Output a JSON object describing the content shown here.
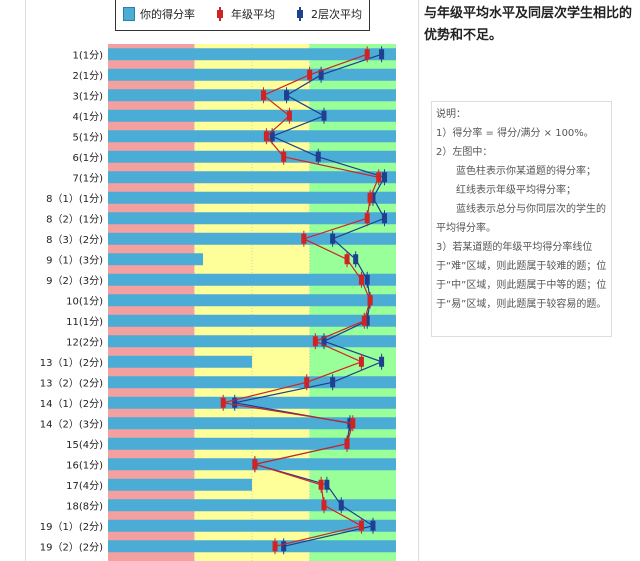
{
  "top_text": "与年级平均水平及同层次学生相比的优势和不足。",
  "legend": {
    "score": "你的得分率",
    "grade": "年级平均",
    "layer": "2层次平均"
  },
  "note": {
    "title": "说明：",
    "line1": "1）得分率 = 得分/满分 × 100%。",
    "line2": "2）左图中：",
    "line3": "蓝色柱表示你某道题的得分率；",
    "line4": "红线表示年级平均得分率；",
    "line5": "蓝线表示总分与你同层次的学生的平均得分率。",
    "line6": "3）若某道题的年级平均得分率线位于“难”区域，则此题属于较难的题；位于“中”区域，则此题属于中等的题；位于“易”区域，则此题属于较容易的题。"
  },
  "colors": {
    "score": "#4bacd6",
    "grade": "#d02424",
    "layer": "#1f3f8f",
    "hard": "#f5a0a0",
    "medium": "#ffff99",
    "easy": "#99ff99"
  },
  "chart_data": {
    "type": "bar",
    "orientation": "horizontal",
    "xlim": [
      0,
      1
    ],
    "zones": [
      {
        "name": "hard",
        "from": 0,
        "to": 0.3
      },
      {
        "name": "medium",
        "from": 0.3,
        "to": 0.7
      },
      {
        "name": "easy",
        "from": 0.7,
        "to": 1
      }
    ],
    "categories": [
      "1(1分)",
      "2(1分)",
      "3(1分)",
      "4(1分)",
      "5(1分)",
      "6(1分)",
      "7(1分)",
      "8（1）(1分)",
      "8（2）(1分)",
      "8（3）(2分)",
      "9（1）(3分)",
      "9（2）(3分)",
      "10(1分)",
      "11(1分)",
      "12(2分)",
      "13（1）(2分)",
      "13（2）(2分)",
      "14（1）(2分)",
      "14（2）(3分)",
      "15(4分)",
      "16(1分)",
      "17(4分)",
      "18(8分)",
      "19（1）(2分)",
      "19（2）(2分)"
    ],
    "series": [
      {
        "name": "你的得分率",
        "values": [
          1,
          1,
          1,
          1,
          1,
          1,
          1,
          1,
          1,
          1,
          0.33,
          1,
          1,
          1,
          1,
          0.5,
          1,
          1,
          1,
          1,
          1,
          0.5,
          1,
          1,
          1
        ]
      },
      {
        "name": "年级平均",
        "values": [
          0.9,
          0.7,
          0.54,
          0.63,
          0.55,
          0.61,
          0.94,
          0.91,
          0.9,
          0.68,
          0.83,
          0.88,
          0.91,
          0.89,
          0.72,
          0.88,
          0.69,
          0.4,
          0.85,
          0.83,
          0.51,
          0.74,
          0.75,
          0.88,
          0.58
        ]
      },
      {
        "name": "2层次平均",
        "values": [
          0.95,
          0.74,
          0.62,
          0.75,
          0.57,
          0.73,
          0.96,
          0.92,
          0.96,
          0.78,
          0.86,
          0.9,
          0.91,
          0.9,
          0.75,
          0.95,
          0.78,
          0.44,
          0.84,
          0.83,
          0.51,
          0.76,
          0.81,
          0.92,
          0.61
        ]
      }
    ]
  }
}
